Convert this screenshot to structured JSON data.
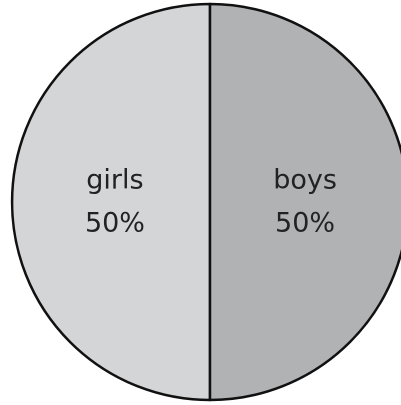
{
  "chart_data": {
    "type": "pie",
    "categories": [
      "girls",
      "boys"
    ],
    "values": [
      50,
      50
    ],
    "value_labels": [
      "50%",
      "50%"
    ],
    "colors": [
      "#d4d5d7",
      "#b1b2b4"
    ]
  }
}
